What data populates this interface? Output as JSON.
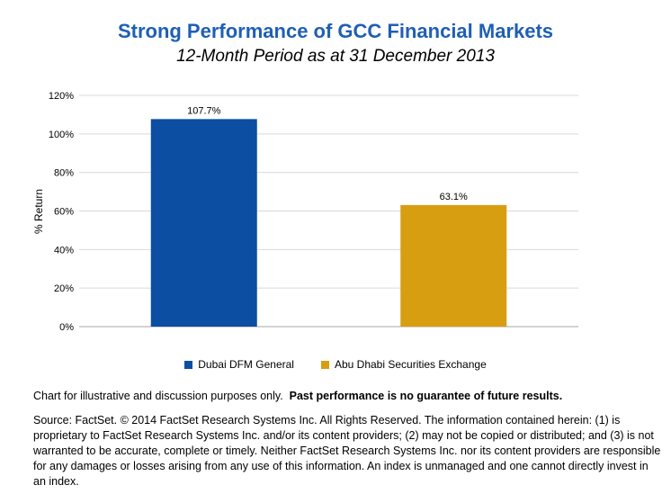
{
  "chart_data": {
    "type": "bar",
    "title": "Strong Performance of GCC Financial Markets",
    "subtitle": "12-Month Period as at 31 December 2013",
    "ylabel": "% Return",
    "xlabel": "",
    "ylim": [
      0,
      120
    ],
    "yticks": [
      "0%",
      "20%",
      "40%",
      "60%",
      "80%",
      "100%",
      "120%"
    ],
    "ytick_values": [
      0,
      20,
      40,
      60,
      80,
      100,
      120
    ],
    "grid": true,
    "legend_position": "bottom",
    "series": [
      {
        "name": "Dubai DFM General",
        "value": 107.7,
        "label": "107.7%",
        "color": "#0b4ea2"
      },
      {
        "name": "Abu Dhabi Securities Exchange",
        "value": 63.1,
        "label": "63.1%",
        "color": "#d89e12"
      }
    ]
  },
  "notes": {
    "disclaimer_plain": "Chart for illustrative and discussion purposes only.",
    "disclaimer_bold": "Past performance is no guarantee of future results.",
    "source": "Source: FactSet. © 2014  FactSet Research Systems Inc. All Rights Reserved. The information contained herein: (1) is proprietary to FactSet Research Systems Inc. and/or its content providers; (2) may not be copied or distributed; and (3) is not warranted to be accurate, complete or timely. Neither FactSet Research Systems Inc. nor its content providers are responsible for any damages or losses arising from any use of this information. An index is unmanaged and one cannot directly invest in an index."
  }
}
